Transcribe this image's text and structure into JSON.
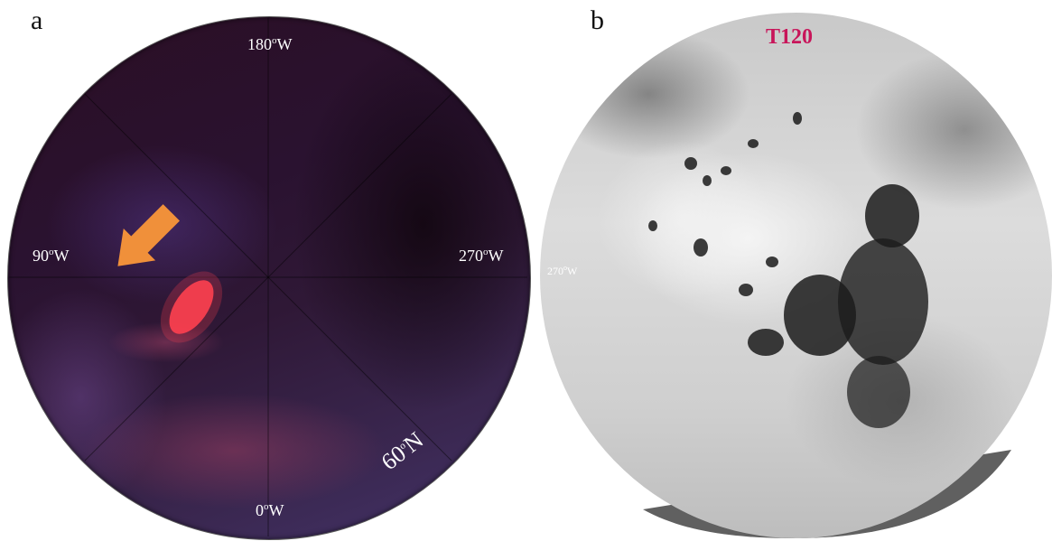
{
  "panel_a": {
    "letter": "a",
    "labels": {
      "top": "180",
      "left": "90",
      "right": "270",
      "bottom": "0",
      "latitude": "60",
      "deg_symbol": "o",
      "west_suffix": "W",
      "north_suffix": "N"
    },
    "arrow_color": "#f0903a",
    "highlight_color": "#ff4050"
  },
  "panel_b": {
    "letter": "b",
    "title": "T120",
    "title_color": "#c8155a",
    "side_label": "270",
    "deg_symbol": "o",
    "west_suffix": "W",
    "region_color": "#c8155a"
  }
}
